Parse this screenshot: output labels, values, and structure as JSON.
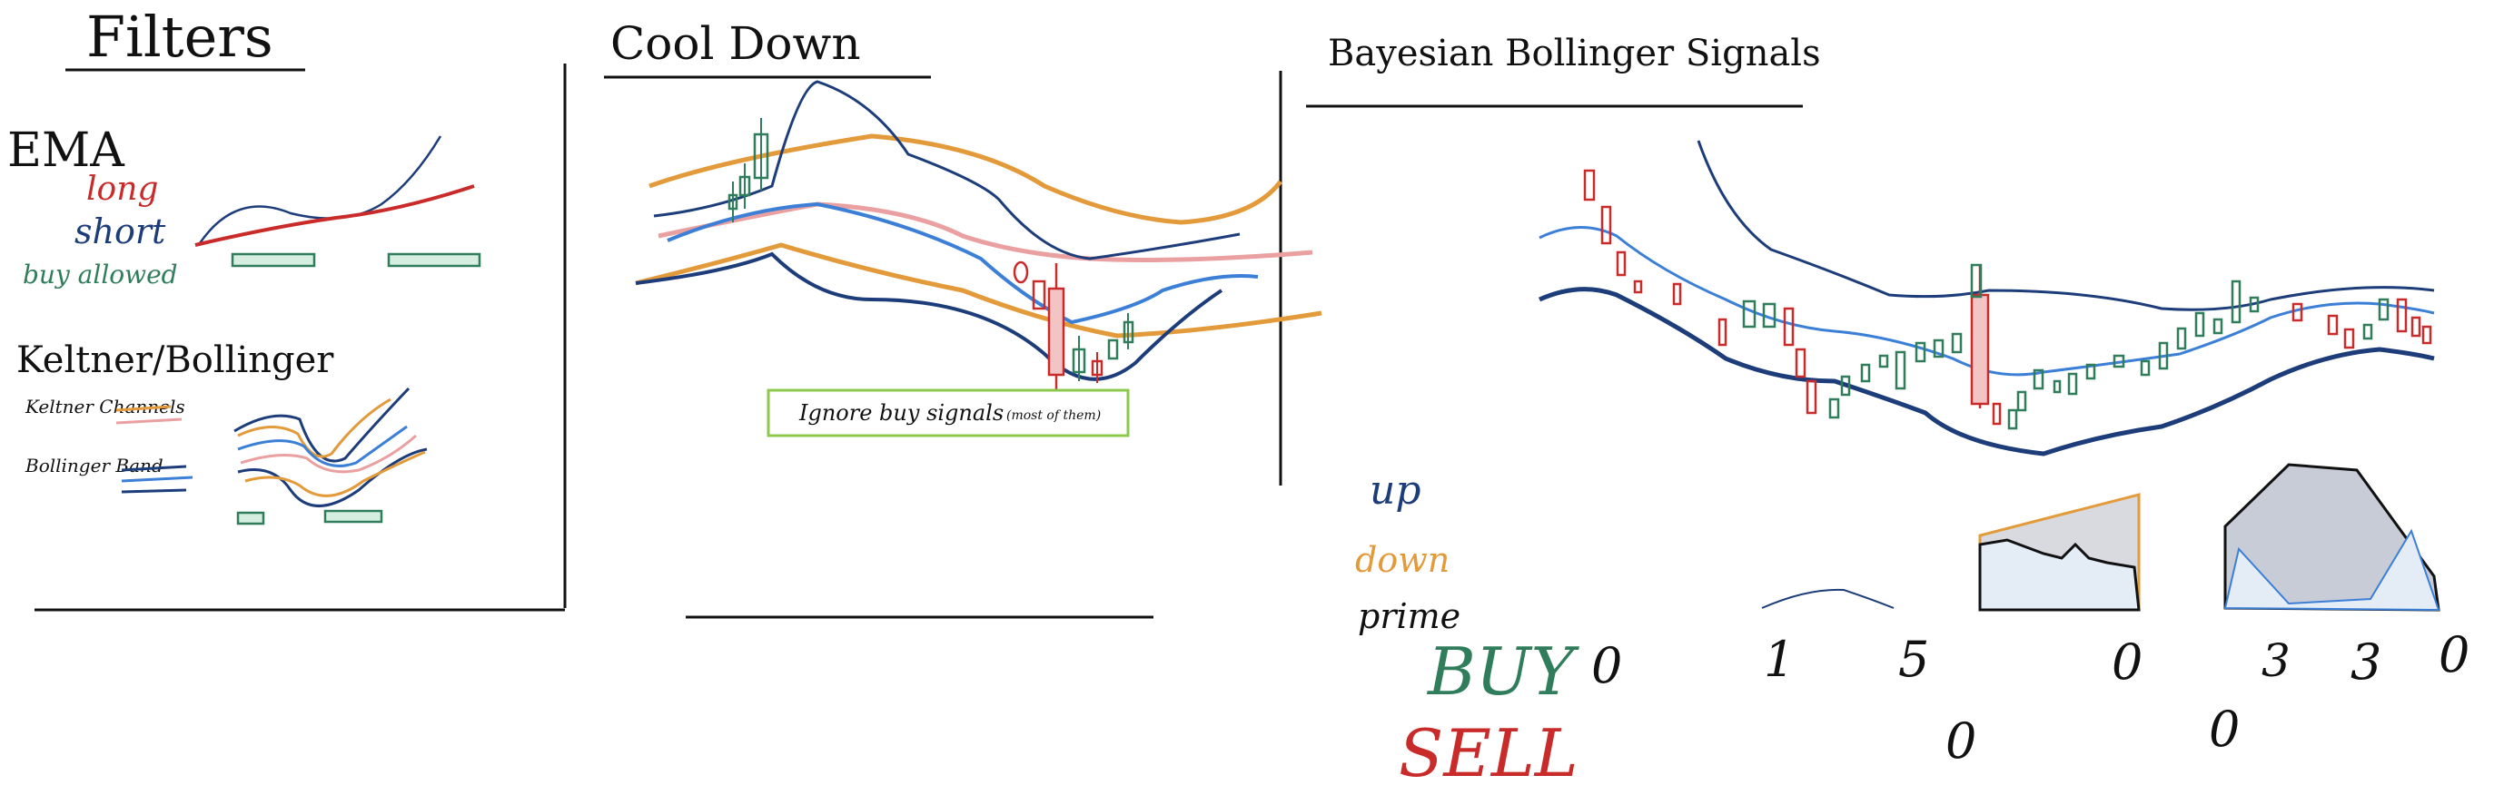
{
  "colors": {
    "ink": "#111111",
    "dark_blue": "#1c3d7a",
    "mid_blue": "#3b7fd6",
    "orange": "#e39a3a",
    "pink": "#eaa0a0",
    "red": "#c92a2a",
    "green": "#2f7d5b",
    "lime_box": "#8cc84b",
    "gray_fill": "#c8ccd6",
    "light_blue_fill": "#e4ecf6"
  },
  "filters": {
    "title": "Filters",
    "ema": {
      "title": "EMA",
      "long_label": "long",
      "short_label": "short",
      "buy_allowed_label": "buy allowed"
    },
    "keltner_bollinger": {
      "title": "Keltner/Bollinger",
      "keltner_label": "Keltner Channels",
      "bollinger_label": "Bollinger Band"
    }
  },
  "cooldown": {
    "title": "Cool Down",
    "ignore_label": "Ignore buy signals",
    "ignore_note": "(most of them)"
  },
  "bayesian": {
    "title": "Bayesian Bollinger Signals",
    "legend": {
      "up": "up",
      "down": "down",
      "prime": "prime"
    },
    "buy_label": "BUY",
    "sell_label": "SELL",
    "buy_values": [
      "0",
      "1",
      "5",
      "0",
      "3",
      "3",
      "0"
    ],
    "sell_values": [
      "0",
      "0"
    ]
  }
}
